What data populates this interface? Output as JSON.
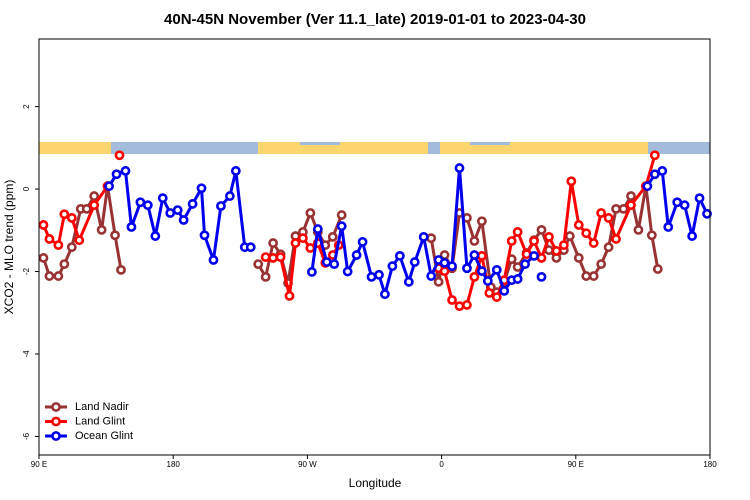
{
  "chart_data": {
    "type": "line",
    "title": "40N-45N November (Ver 11.1_late)   2019-01-01 to 2023-04-30",
    "x_label": "Longitude",
    "y_label": "XCO2 - MLO trend (ppm)",
    "xlim": [
      90,
      540
    ],
    "ylim": [
      -6.45,
      3.64
    ],
    "xticks": [
      {
        "value": 90,
        "label": "90 E"
      },
      {
        "value": 180,
        "label": "180"
      },
      {
        "value": 270,
        "label": "90 W"
      },
      {
        "value": 360,
        "label": "0"
      },
      {
        "value": 450,
        "label": "90 E"
      },
      {
        "value": 540,
        "label": "180"
      }
    ],
    "yticks": [
      -6,
      -4,
      -2,
      0,
      2
    ],
    "legend": "bottom-left",
    "series": [
      {
        "name": "Land Nadir",
        "color": "#993333",
        "x": [
          93,
          97,
          103,
          107,
          112,
          118,
          122,
          127,
          132,
          136,
          141,
          145,
          null,
          237,
          242,
          247,
          252,
          257,
          262,
          267,
          272,
          277,
          282,
          287,
          293,
          null,
          353,
          358,
          362,
          367,
          372,
          377,
          382,
          387,
          393,
          397,
          402,
          407,
          411,
          417,
          422,
          427,
          432,
          437,
          442,
          446,
          452,
          457,
          462,
          467,
          472,
          477,
          482,
          487,
          492,
          497,
          501,
          505
        ],
        "values": [
          -1.67,
          -2.11,
          -2.11,
          -1.82,
          -1.41,
          -0.48,
          -0.48,
          -0.17,
          -0.99,
          0.07,
          -1.12,
          -1.96,
          null,
          -1.82,
          -2.13,
          -1.31,
          -1.58,
          -2.28,
          -1.14,
          -1.04,
          -0.58,
          -1.04,
          -1.36,
          -1.16,
          -0.63,
          null,
          -1.19,
          -2.25,
          -1.6,
          -1.92,
          -0.58,
          -0.7,
          -1.26,
          -0.78,
          -2.38,
          -2.5,
          -2.25,
          -1.7,
          -1.89,
          -1.55,
          -1.24,
          -0.99,
          -1.48,
          -1.67,
          -1.48,
          -1.14,
          -1.67,
          -2.11,
          -2.11,
          -1.82,
          -1.41,
          -0.48,
          -0.48,
          -0.17,
          -0.99,
          0.07,
          -1.12,
          -1.94
        ]
      },
      {
        "name": "Land Glint",
        "color": "#ff0000",
        "x": [
          93,
          97,
          103,
          107,
          112,
          117,
          127,
          136,
          null,
          144,
          null,
          242,
          247,
          252,
          258,
          262,
          267,
          272,
          277,
          282,
          287,
          291,
          null,
          358,
          362,
          367,
          372,
          377,
          382,
          387,
          392,
          397,
          402,
          407,
          411,
          417,
          422,
          427,
          432,
          437,
          442,
          447,
          452,
          457,
          462,
          467,
          472,
          477,
          487,
          497,
          503
        ],
        "values": [
          -0.87,
          -1.21,
          -1.36,
          -0.61,
          -0.7,
          -1.24,
          -0.39,
          0.07,
          null,
          0.82,
          null,
          -1.65,
          -1.67,
          -1.65,
          -2.59,
          -1.31,
          -1.19,
          -1.43,
          -1.31,
          -1.79,
          -1.6,
          -1.36,
          null,
          -1.92,
          -1.99,
          -2.69,
          -2.84,
          -2.81,
          -2.13,
          -1.62,
          -2.52,
          -2.62,
          -2.21,
          -1.26,
          -1.04,
          -1.58,
          -1.26,
          -1.67,
          -1.16,
          -1.5,
          -1.36,
          0.19,
          -0.87,
          -1.07,
          -1.31,
          -0.58,
          -0.7,
          -1.21,
          -0.39,
          0.07,
          0.82
        ]
      },
      {
        "name": "Ocean Glint",
        "color": "#0000ee",
        "x": [
          137,
          142,
          148,
          152,
          158,
          163,
          168,
          173,
          178,
          183,
          187,
          193,
          199,
          201,
          207,
          212,
          218,
          222,
          228,
          232,
          null,
          273,
          277,
          283,
          288,
          293,
          297,
          303,
          307,
          313,
          318,
          322,
          327,
          332,
          338,
          342,
          348,
          353,
          358,
          362,
          367,
          372,
          377,
          382,
          387,
          391,
          397,
          402,
          407,
          411,
          416,
          422,
          null,
          427,
          null,
          498,
          503,
          508,
          512,
          518,
          523,
          528,
          533,
          538
        ],
        "values": [
          0.07,
          0.36,
          0.44,
          -0.92,
          -0.32,
          -0.39,
          -1.14,
          -0.22,
          -0.58,
          -0.51,
          -0.75,
          -0.36,
          0.02,
          -1.12,
          -1.72,
          -0.41,
          -0.17,
          0.44,
          -1.41,
          -1.41,
          null,
          -2.01,
          -0.97,
          -1.77,
          -1.82,
          -0.9,
          -2.0,
          -1.6,
          -1.28,
          -2.13,
          -2.08,
          -2.55,
          -1.87,
          -1.62,
          -2.25,
          -1.77,
          -1.16,
          -2.11,
          -1.72,
          -1.79,
          -1.87,
          0.51,
          -1.92,
          -1.6,
          -1.99,
          -2.23,
          -1.96,
          -2.47,
          -2.21,
          -2.18,
          -1.82,
          -1.62,
          null,
          -2.13,
          null,
          0.07,
          0.36,
          0.44,
          -0.92,
          -0.32,
          -0.39,
          -1.14,
          -0.22,
          -0.6
        ]
      }
    ]
  }
}
